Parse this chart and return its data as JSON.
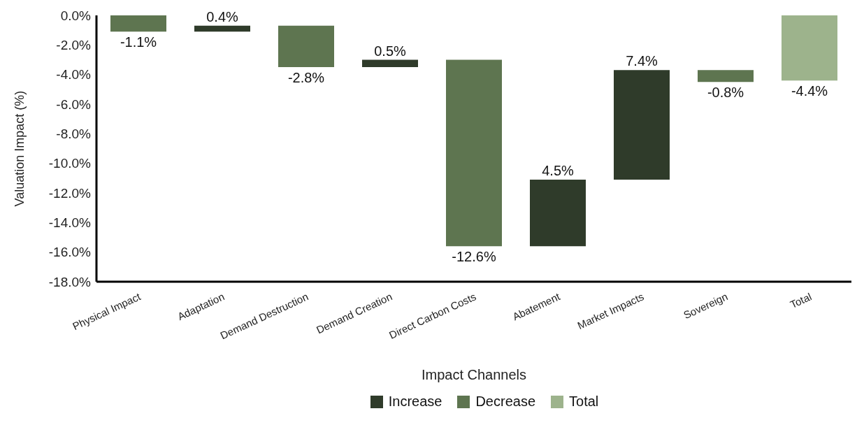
{
  "chart_data": {
    "type": "bar",
    "xlabel": "Impact Channels",
    "ylabel": "Valuation Impact (%)",
    "categories": [
      "Physical Impact",
      "Adaptation",
      "Demand Destruction",
      "Demand Creation",
      "Direct Carbon Costs",
      "Abatement",
      "Market Impacts",
      "Sovereign",
      "Total"
    ],
    "series": [
      {
        "name": "Increase",
        "color": "#2f3b2a",
        "values": [
          null,
          0.4,
          null,
          0.5,
          null,
          4.5,
          7.4,
          null,
          null
        ],
        "base": [
          null,
          -1.1,
          null,
          -3.5,
          null,
          -15.6,
          -11.1,
          null,
          null
        ],
        "value_labels": [
          null,
          "0.4%",
          null,
          "0.5%",
          null,
          "4.5%",
          "7.4%",
          null,
          null
        ]
      },
      {
        "name": "Decrease",
        "color": "#5e7550",
        "values": [
          -1.1,
          null,
          -2.8,
          null,
          -12.6,
          null,
          null,
          -0.8,
          null
        ],
        "base": [
          0,
          null,
          -0.7,
          null,
          -3.0,
          null,
          null,
          -3.7,
          null
        ],
        "value_labels": [
          "-1.1%",
          null,
          "-2.8%",
          null,
          "-12.6%",
          null,
          null,
          "-0.8%",
          null
        ]
      },
      {
        "name": "Total",
        "color": "#9db38c",
        "values": [
          null,
          null,
          null,
          null,
          null,
          null,
          null,
          null,
          -4.4
        ],
        "base": [
          null,
          null,
          null,
          null,
          null,
          null,
          null,
          null,
          0
        ],
        "value_labels": [
          null,
          null,
          null,
          null,
          null,
          null,
          null,
          null,
          "-4.4%"
        ]
      }
    ],
    "ylim": [
      -18,
      0
    ],
    "yticks": [
      {
        "value": -18,
        "label": "-18.0%"
      },
      {
        "value": -16,
        "label": "-16.0%"
      },
      {
        "value": -14,
        "label": "-14.0%"
      },
      {
        "value": -12,
        "label": "-12.0%"
      },
      {
        "value": -10,
        "label": "-10.0%"
      },
      {
        "value": -8,
        "label": "-8.0%"
      },
      {
        "value": -6,
        "label": "-6.0%"
      },
      {
        "value": -4,
        "label": "-4.0%"
      },
      {
        "value": -2,
        "label": "-2.0%"
      },
      {
        "value": 0,
        "label": "0.0%"
      }
    ],
    "legend": "bottom"
  }
}
